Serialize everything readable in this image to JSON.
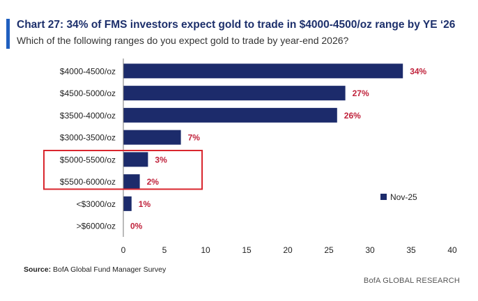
{
  "header": {
    "title": "Chart 27: 34% of FMS investors expect gold to trade in $4000-4500/oz range by YE ‘26",
    "subtitle": "Which of the following ranges do you expect gold to trade by year-end 2026?"
  },
  "footer": {
    "source_label": "Source:",
    "source_text": " BofA Global Fund Manager Survey",
    "brand": "BofA GLOBAL RESEARCH"
  },
  "colors": {
    "bar": "#1c2b6b",
    "value_label": "#c0223b",
    "highlight_box": "#d9262e",
    "accent": "#1f5fbf"
  },
  "chart_data": {
    "type": "bar",
    "orientation": "horizontal",
    "title": "Chart 27: 34% of FMS investors expect gold to trade in $4000-4500/oz range by YE ‘26",
    "subtitle": "Which of the following ranges do you expect gold to trade by year-end 2026?",
    "categories": [
      "$4000-4500/oz",
      "$4500-5000/oz",
      "$3500-4000/oz",
      "$3000-3500/oz",
      "$5000-5500/oz",
      "$5500-6000/oz",
      "<$3000/oz",
      ">$6000/oz"
    ],
    "series": [
      {
        "name": "Nov-25",
        "values": [
          34,
          27,
          26,
          7,
          3,
          2,
          1,
          0
        ]
      }
    ],
    "value_labels": [
      "34%",
      "27%",
      "26%",
      "7%",
      "3%",
      "2%",
      "1%",
      "0%"
    ],
    "xlim": [
      0,
      40
    ],
    "xticks": [
      0,
      5,
      10,
      15,
      20,
      25,
      30,
      35,
      40
    ],
    "xlabel": "",
    "ylabel": "",
    "legend_position": "right",
    "grid": false,
    "highlighted_categories": [
      "$5000-5500/oz",
      "$5500-6000/oz"
    ]
  }
}
